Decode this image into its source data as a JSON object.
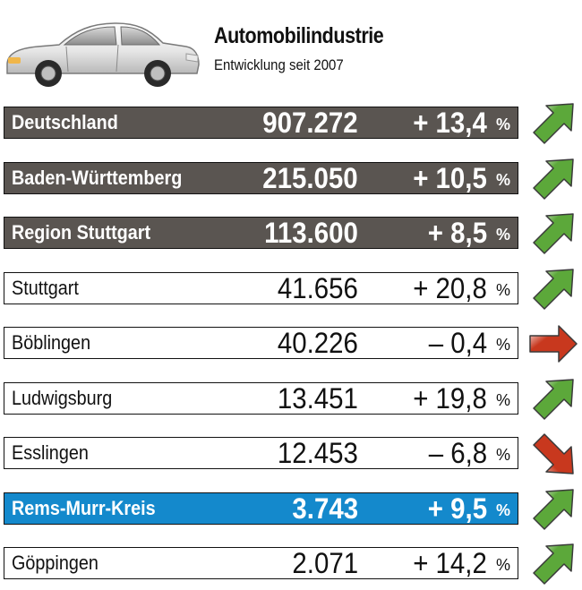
{
  "header": {
    "title": "Automobilindustrie",
    "subtitle": "Entwicklung seit 2007"
  },
  "colors": {
    "dark_row": "#5a5551",
    "highlight_row": "#1489cc",
    "arrow_up": "#5ca83a",
    "arrow_side": "#c8381e",
    "arrow_down": "#c8381e"
  },
  "chart_data": {
    "type": "table",
    "columns": [
      "region",
      "value",
      "change",
      "unit",
      "trend"
    ],
    "rows": [
      {
        "region": "Deutschland",
        "value": "907.272",
        "change": "+ 13,4",
        "unit": "%",
        "trend": "up",
        "style": "dark"
      },
      {
        "region": "Baden-Württemberg",
        "value": "215.050",
        "change": "+ 10,5",
        "unit": "%",
        "trend": "up",
        "style": "dark"
      },
      {
        "region": "Region Stuttgart",
        "value": "113.600",
        "change": "+ 8,5",
        "unit": "%",
        "trend": "up",
        "style": "dark"
      },
      {
        "region": "Stuttgart",
        "value": "41.656",
        "change": "+ 20,8",
        "unit": "%",
        "trend": "up",
        "style": "plain"
      },
      {
        "region": "Böblingen",
        "value": "40.226",
        "change": "– 0,4",
        "unit": "%",
        "trend": "right",
        "style": "plain"
      },
      {
        "region": "Ludwigsburg",
        "value": "13.451",
        "change": "+ 19,8",
        "unit": "%",
        "trend": "up",
        "style": "plain"
      },
      {
        "region": "Esslingen",
        "value": "12.453",
        "change": "– 6,8",
        "unit": "%",
        "trend": "down",
        "style": "plain"
      },
      {
        "region": "Rems-Murr-Kreis",
        "value": "3.743",
        "change": "+ 9,5",
        "unit": "%",
        "trend": "up",
        "style": "blue"
      },
      {
        "region": "Göppingen",
        "value": "2.071",
        "change": "+ 14,2",
        "unit": "%",
        "trend": "up",
        "style": "plain"
      }
    ]
  }
}
